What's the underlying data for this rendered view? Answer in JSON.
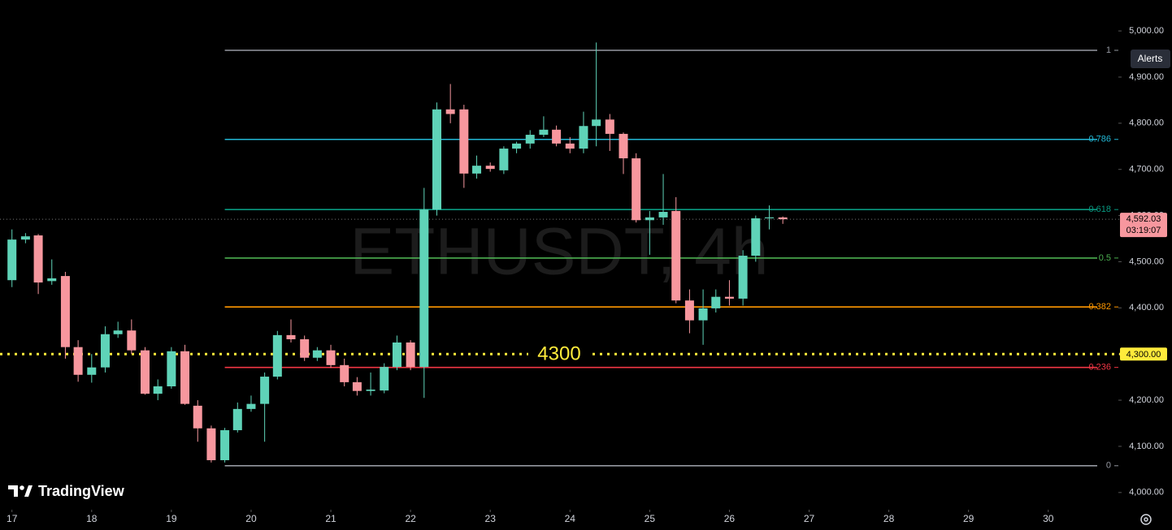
{
  "chart_data": {
    "type": "candlestick",
    "watermark": "ETHUSDT, 4h",
    "x": [
      17,
      17.17,
      17.33,
      17.5,
      17.67,
      17.83,
      18,
      18.17,
      18.33,
      18.5,
      18.67,
      18.83,
      19,
      19.17,
      19.33,
      19.5,
      19.67,
      19.83,
      20,
      20.17,
      20.33,
      20.5,
      20.67,
      20.83,
      21,
      21.17,
      21.33,
      21.5,
      21.67,
      21.83,
      22,
      22.17,
      22.33,
      22.5,
      22.67,
      22.83,
      23,
      23.17,
      23.33,
      23.5,
      23.67,
      23.83,
      24,
      24.17,
      24.33,
      24.5,
      24.67,
      24.83,
      25,
      25.17,
      25.33,
      25.5,
      25.67,
      25.83,
      26,
      26.17,
      26.33,
      26.5,
      26.67
    ],
    "open": [
      4460,
      4548,
      4557,
      4458,
      4469,
      4315,
      4255,
      4271,
      4343,
      4351,
      4308,
      4214,
      4230,
      4306,
      4188,
      4139,
      4070,
      4135,
      4181,
      4192,
      4251,
      4341,
      4332,
      4292,
      4308,
      4276,
      4239,
      4220,
      4221,
      4272,
      4325,
      4272,
      4613,
      4830,
      4830,
      4691,
      4708,
      4698,
      4745,
      4756,
      4775,
      4786,
      4756,
      4745,
      4794,
      4808,
      4777,
      4724,
      4590,
      4596,
      4610,
      4416,
      4373,
      4399,
      4424,
      4420,
      4513,
      4594,
      4596
    ],
    "high": [
      4570,
      4562,
      4560,
      4505,
      4478,
      4330,
      4300,
      4360,
      4370,
      4375,
      4315,
      4245,
      4315,
      4320,
      4200,
      4145,
      4140,
      4195,
      4210,
      4260,
      4350,
      4375,
      4340,
      4315,
      4320,
      4290,
      4250,
      4260,
      4280,
      4340,
      4330,
      4660,
      4845,
      4885,
      4840,
      4730,
      4715,
      4750,
      4760,
      4785,
      4815,
      4795,
      4770,
      4825,
      4975,
      4820,
      4780,
      4735,
      4610,
      4690,
      4640,
      4440,
      4440,
      4440,
      4460,
      4525,
      4600,
      4622,
      4598
    ],
    "low": [
      4445,
      4540,
      4430,
      4450,
      4290,
      4240,
      4238,
      4260,
      4335,
      4300,
      4212,
      4200,
      4225,
      4190,
      4110,
      4065,
      4065,
      4130,
      4175,
      4110,
      4245,
      4325,
      4285,
      4285,
      4270,
      4230,
      4210,
      4210,
      4215,
      4265,
      4265,
      4205,
      4600,
      4800,
      4660,
      4680,
      4695,
      4690,
      4735,
      4745,
      4770,
      4750,
      4735,
      4735,
      4750,
      4740,
      4690,
      4585,
      4515,
      4580,
      4410,
      4345,
      4320,
      4390,
      4405,
      4405,
      4500,
      4570,
      4582
    ],
    "close": [
      4548,
      4555,
      4455,
      4464,
      4315,
      4255,
      4271,
      4343,
      4351,
      4308,
      4214,
      4230,
      4306,
      4192,
      4139,
      4070,
      4135,
      4181,
      4192,
      4251,
      4341,
      4332,
      4292,
      4308,
      4276,
      4239,
      4220,
      4223,
      4272,
      4325,
      4272,
      4613,
      4830,
      4820,
      4691,
      4708,
      4701,
      4745,
      4756,
      4775,
      4786,
      4756,
      4745,
      4794,
      4808,
      4777,
      4724,
      4590,
      4596,
      4608,
      4416,
      4373,
      4399,
      4424,
      4420,
      4513,
      4594,
      4596,
      4592.03
    ],
    "up_color": "#5fd3b8",
    "down_color": "#f7979e",
    "xlim": [
      16.85,
      30.92
    ],
    "xticks": [
      17,
      18,
      19,
      20,
      21,
      22,
      23,
      24,
      25,
      26,
      27,
      28,
      29,
      30
    ],
    "ylim": [
      3968,
      5067
    ],
    "yticks": [
      {
        "value": 4000,
        "label": "4,000.00"
      },
      {
        "value": 4100,
        "label": "4,100.00"
      },
      {
        "value": 4200,
        "label": "4,200.00"
      },
      {
        "value": 4300,
        "label": "4,300.00"
      },
      {
        "value": 4400,
        "label": "4,400.00"
      },
      {
        "value": 4500,
        "label": "4,500.00"
      },
      {
        "value": 4600,
        "label": "4,600.00"
      },
      {
        "value": 4700,
        "label": "4,700.00"
      },
      {
        "value": 4800,
        "label": "4,800.00"
      },
      {
        "value": 4900,
        "label": "4,900.00"
      },
      {
        "value": 5000,
        "label": "5,000.00"
      }
    ],
    "fib": {
      "start": 19.67,
      "levels": [
        {
          "ratio": 1,
          "price": 4958,
          "color": "#9598a1"
        },
        {
          "ratio": 0.786,
          "price": 4765,
          "color": "#22b8d6"
        },
        {
          "ratio": 0.618,
          "price": 4613,
          "color": "#089981"
        },
        {
          "ratio": 0.5,
          "price": 4508,
          "color": "#4caf50"
        },
        {
          "ratio": 0.382,
          "price": 4402,
          "color": "#ff9800"
        },
        {
          "ratio": 0.236,
          "price": 4271,
          "color": "#f23645"
        },
        {
          "ratio": 0,
          "price": 4058,
          "color": "#9598a1"
        }
      ]
    },
    "hline": {
      "price": 4300,
      "axis_label": "4,300.00",
      "color": "#ffeb3b"
    },
    "last_price": {
      "value": 4592.03,
      "label": "4,592.03",
      "countdown": "03:19:07",
      "color": "#f7979e"
    },
    "alerts_button": "Alerts",
    "logo": "TradingView"
  }
}
